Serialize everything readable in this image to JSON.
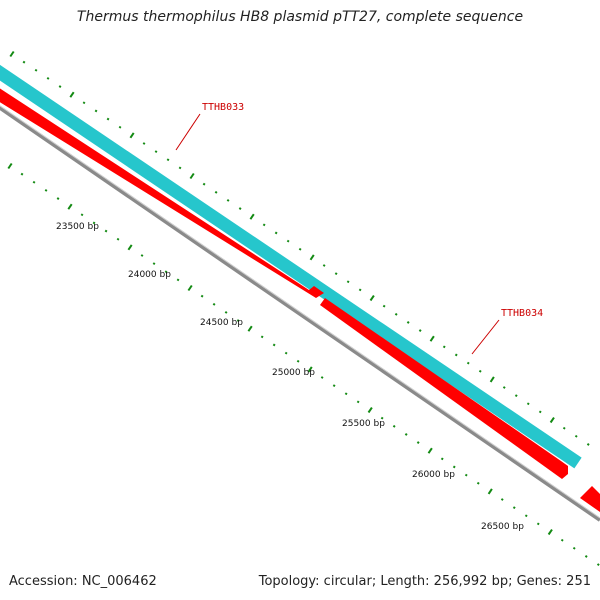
{
  "title": "Thermus thermophilus HB8 plasmid pTT27, complete sequence",
  "footer": {
    "accession": "Accession: NC_006462",
    "info": "Topology: circular; Length: 256,992 bp; Genes: 251"
  },
  "colors": {
    "forward_feature": "#26c6cc",
    "reverse_feature": "#ff0000",
    "backbone": "#8a8a8a",
    "tick": "#138a13",
    "gene_label": "#cc0000"
  },
  "scale_labels": [
    "23500 bp",
    "24000 bp",
    "24500 bp",
    "25000 bp",
    "25500 bp",
    "26000 bp",
    "26500 bp"
  ],
  "genes": [
    {
      "name": "TTHB033",
      "strand": "reverse"
    },
    {
      "name": "TTHB034",
      "strand": "reverse"
    }
  ]
}
